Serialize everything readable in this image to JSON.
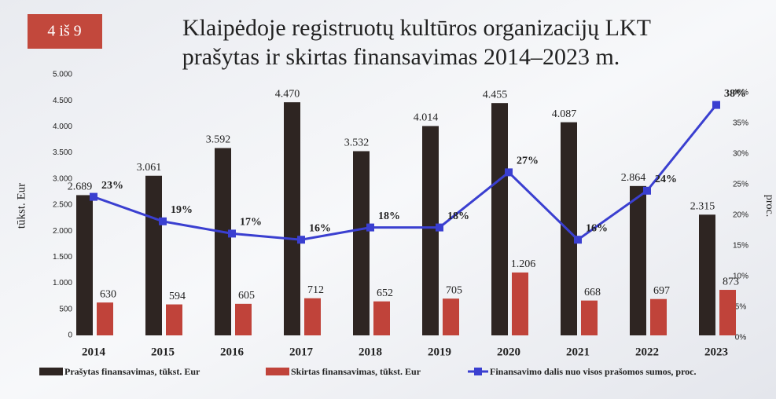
{
  "badge": "4 iš 9",
  "chart_data": {
    "type": "bar",
    "title": [
      "Klaipėdoje registruotų kultūros organizacijų LKT",
      "prašytas ir skirtas finansavimas 2014–2023 m."
    ],
    "y_label": "tūkst. Eur",
    "y2_label": "proc.",
    "categories": [
      "2014",
      "2015",
      "2016",
      "2017",
      "2018",
      "2019",
      "2020",
      "2021",
      "2022",
      "2023"
    ],
    "series": [
      {
        "name": "Prašytas finansavimas, tūkst. Eur",
        "type": "bar",
        "color": "#2e2522",
        "values": [
          2689,
          3061,
          3592,
          4470,
          3532,
          4014,
          4455,
          4087,
          2864,
          2315
        ],
        "value_labels": [
          "2.689",
          "3.061",
          "3.592",
          "4.470",
          "3.532",
          "4.014",
          "4.455",
          "4.087",
          "2.864",
          "2.315"
        ]
      },
      {
        "name": "Skirtas finansavimas, tūkst. Eur",
        "type": "bar",
        "color": "#c0433a",
        "values": [
          630,
          594,
          605,
          712,
          652,
          705,
          1206,
          668,
          697,
          873
        ],
        "value_labels": [
          "630",
          "594",
          "605",
          "712",
          "652",
          "705",
          "1.206",
          "668",
          "697",
          "873"
        ]
      },
      {
        "name": "Finansavimo dalis nuo visos prašomos sumos, proc.",
        "type": "line",
        "axis": "y2",
        "color": "#3a3fd0",
        "values": [
          23,
          19,
          17,
          16,
          18,
          18,
          27,
          16,
          24,
          38
        ],
        "value_labels": [
          "23%",
          "19%",
          "17%",
          "16%",
          "18%",
          "18%",
          "27%",
          "16%",
          "24%",
          "38%"
        ]
      }
    ],
    "ylim": [
      0,
      5000
    ],
    "yticks": [
      {
        "value": 0,
        "label": "0"
      },
      {
        "value": 500,
        "label": "500"
      },
      {
        "value": 1000,
        "label": "1.000"
      },
      {
        "value": 1500,
        "label": "1.500"
      },
      {
        "value": 2000,
        "label": "2.000"
      },
      {
        "value": 2500,
        "label": "2.500"
      },
      {
        "value": 3000,
        "label": "3.000"
      },
      {
        "value": 3500,
        "label": "3.500"
      },
      {
        "value": 4000,
        "label": "4.000"
      },
      {
        "value": 4500,
        "label": "4.500"
      },
      {
        "value": 5000,
        "label": "5.000"
      }
    ],
    "y2lim": [
      0,
      40
    ],
    "y2ticks": [
      {
        "value": 0,
        "label": "0%"
      },
      {
        "value": 5,
        "label": "5%"
      },
      {
        "value": 10,
        "label": "10%"
      },
      {
        "value": 15,
        "label": "15%"
      },
      {
        "value": 20,
        "label": "20%"
      },
      {
        "value": 25,
        "label": "25%"
      },
      {
        "value": 30,
        "label": "30%"
      },
      {
        "value": 35,
        "label": "35%"
      },
      {
        "value": 40,
        "label": "40%"
      }
    ],
    "grid": false
  }
}
